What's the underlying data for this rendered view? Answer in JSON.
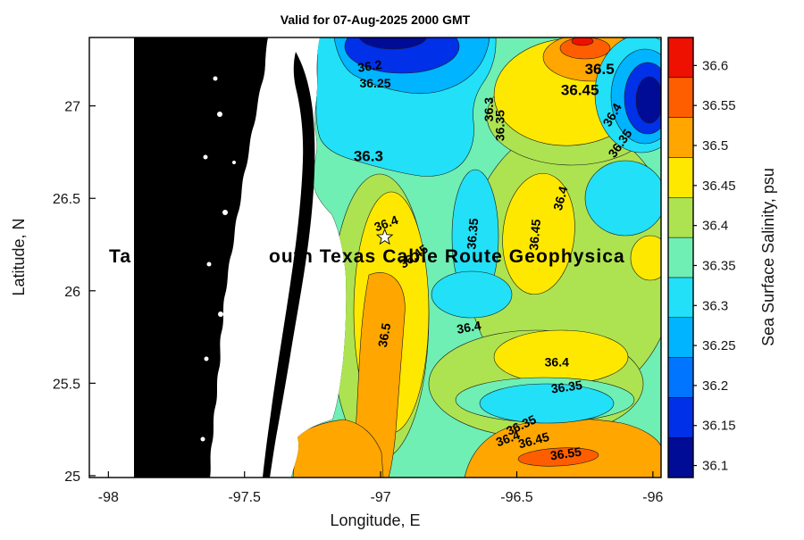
{
  "chart_data": {
    "type": "heatmap",
    "subtype": "filled-contour-map",
    "title": "Valid for 07-Aug-2025 2000 GMT",
    "xlabel": "Longitude, E",
    "ylabel": "Latitude, N",
    "xlim": [
      -98.07,
      -95.97
    ],
    "ylim": [
      24.99,
      27.37
    ],
    "xticks": [
      -98,
      -97.5,
      -97,
      -96.5,
      -96
    ],
    "yticks": [
      25,
      25.5,
      26,
      26.5,
      27
    ],
    "grid": false,
    "land_color": "#000000",
    "colorbar": {
      "label": "Sea Surface Salinity, psu",
      "ticks": [
        36.1,
        36.15,
        36.2,
        36.25,
        36.3,
        36.35,
        36.4,
        36.45,
        36.5,
        36.55,
        36.6
      ],
      "range": [
        36.085,
        36.635
      ],
      "band_colors_bottom_to_top": [
        "#000C96",
        "#0030E8",
        "#0075FF",
        "#00B4FF",
        "#22E0F7",
        "#6FEFB4",
        "#ADE350",
        "#FFE800",
        "#FFA600",
        "#FF5E00",
        "#EE1000"
      ]
    },
    "contour_interval": 0.05,
    "contour_labels": [
      {
        "value": "36.2",
        "lon": -97.04,
        "lat": 27.216,
        "rot": -8
      },
      {
        "value": "36.25",
        "lon": -97.02,
        "lat": 27.125,
        "rot": 0
      },
      {
        "value": "36.3",
        "lon": -97.045,
        "lat": 26.726,
        "rot": 0,
        "big": true
      },
      {
        "value": "36.3",
        "lon": -96.603,
        "lat": 26.981,
        "rot": -90
      },
      {
        "value": "36.35",
        "lon": -96.562,
        "lat": 26.894,
        "rot": -90
      },
      {
        "value": "36.45",
        "lon": -96.268,
        "lat": 27.082,
        "rot": 0,
        "big": true
      },
      {
        "value": "36.5",
        "lon": -96.196,
        "lat": 27.197,
        "rot": 0,
        "big": true
      },
      {
        "value": "36.4",
        "lon": -96.15,
        "lat": 26.952,
        "rot": -60
      },
      {
        "value": "36.35",
        "lon": -96.121,
        "lat": 26.798,
        "rot": -55
      },
      {
        "value": "36.4",
        "lon": -96.34,
        "lat": 26.5,
        "rot": -75
      },
      {
        "value": "36.4",
        "lon": -96.98,
        "lat": 26.365,
        "rot": -20
      },
      {
        "value": "36.45",
        "lon": -96.879,
        "lat": 26.187,
        "rot": -35
      },
      {
        "value": "36.35",
        "lon": -96.663,
        "lat": 26.308,
        "rot": -85
      },
      {
        "value": "36.45",
        "lon": -96.434,
        "lat": 26.303,
        "rot": -85
      },
      {
        "value": "36.5",
        "lon": -96.987,
        "lat": 25.76,
        "rot": -80
      },
      {
        "value": "36.4",
        "lon": -96.676,
        "lat": 25.803,
        "rot": -10
      },
      {
        "value": "36.4",
        "lon": -96.353,
        "lat": 25.615,
        "rot": 0
      },
      {
        "value": "36.35",
        "lon": -96.317,
        "lat": 25.481,
        "rot": -8
      },
      {
        "value": "36.35",
        "lon": -96.484,
        "lat": 25.274,
        "rot": -25
      },
      {
        "value": "36.4",
        "lon": -96.533,
        "lat": 25.202,
        "rot": -20
      },
      {
        "value": "36.45",
        "lon": -96.438,
        "lat": 25.192,
        "rot": -15
      },
      {
        "value": "36.55",
        "lon": -96.32,
        "lat": 25.12,
        "rot": -8
      }
    ],
    "annotations": {
      "overlay_left": "Ta",
      "overlay_right": "outh Texas Cable Route Geophysica",
      "star_marker": {
        "lon": -96.985,
        "lat": 26.289
      }
    }
  }
}
